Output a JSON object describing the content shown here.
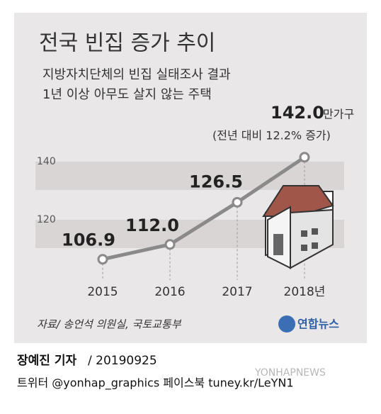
{
  "chart_data": {
    "type": "line",
    "title": "전국 빈집 증가 추이",
    "subtitle": [
      "지방자치단체의 빈집 실태조사 결과",
      "1년 이상 아무도 살지 않는 주택"
    ],
    "categories": [
      "2015",
      "2016",
      "2017",
      "2018년"
    ],
    "series": [
      {
        "name": "빈집",
        "color": "#8a8a8a",
        "values": [
          106.9,
          112.0,
          126.5,
          142.0
        ],
        "value_labels": [
          "106.9",
          "112.0",
          "126.5",
          "142.0"
        ]
      }
    ],
    "unit_label": "만가구",
    "annotation": "(전년 대비 12.2% 증가)",
    "ylim": [
      100,
      150
    ],
    "yticks": [
      120,
      140
    ],
    "grid": true,
    "source": "자료/ 송언석 의원실, 국토교통부",
    "logo": "연합뉴스"
  },
  "footer": {
    "author": "장예진 기자",
    "date": "/ 20190925",
    "social": "트위터 @yonhap_graphics  페이스북 tuney.kr/LeYN1",
    "watermark": "YONHAPNEWS"
  }
}
